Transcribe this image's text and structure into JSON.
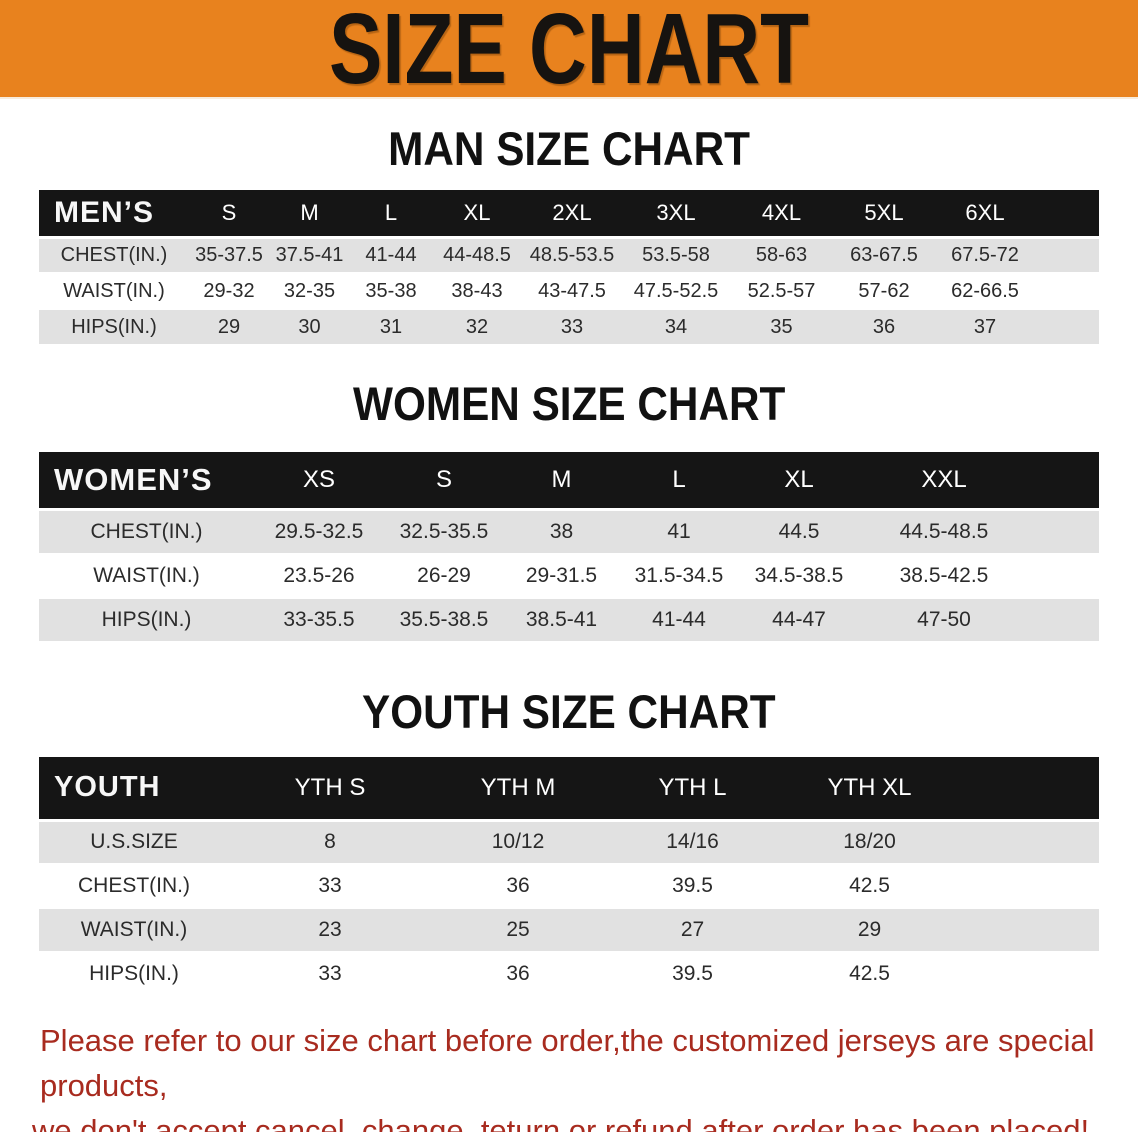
{
  "banner": {
    "title": "SIZE CHART"
  },
  "sections": {
    "men": {
      "title": "MAN SIZE CHART",
      "table": {
        "group_label": "MEN’S",
        "sizes": [
          "S",
          "M",
          "L",
          "XL",
          "2XL",
          "3XL",
          "4XL",
          "5XL",
          "6XL"
        ],
        "rows": [
          {
            "label": "CHEST(IN.)",
            "values": [
              "35-37.5",
              "37.5-41",
              "41-44",
              "44-48.5",
              "48.5-53.5",
              "53.5-58",
              "58-63",
              "63-67.5",
              "67.5-72"
            ]
          },
          {
            "label": "WAIST(IN.)",
            "values": [
              "29-32",
              "32-35",
              "35-38",
              "38-43",
              "43-47.5",
              "47.5-52.5",
              "52.5-57",
              "57-62",
              "62-66.5"
            ]
          },
          {
            "label": "HIPS(IN.)",
            "values": [
              "29",
              "30",
              "31",
              "32",
              "33",
              "34",
              "35",
              "36",
              "37"
            ]
          }
        ]
      }
    },
    "women": {
      "title": "WOMEN SIZE CHART",
      "table": {
        "group_label": "WOMEN’S",
        "sizes": [
          "XS",
          "S",
          "M",
          "L",
          "XL",
          "XXL"
        ],
        "rows": [
          {
            "label": "CHEST(IN.)",
            "values": [
              "29.5-32.5",
              "32.5-35.5",
              "38",
              "41",
              "44.5",
              "44.5-48.5"
            ]
          },
          {
            "label": "WAIST(IN.)",
            "values": [
              "23.5-26",
              "26-29",
              "29-31.5",
              "31.5-34.5",
              "34.5-38.5",
              "38.5-42.5"
            ]
          },
          {
            "label": "HIPS(IN.)",
            "values": [
              "33-35.5",
              "35.5-38.5",
              "38.5-41",
              "41-44",
              "44-47",
              "47-50"
            ]
          }
        ]
      }
    },
    "youth": {
      "title": "YOUTH SIZE CHART",
      "table": {
        "group_label": "YOUTH",
        "sizes": [
          "YTH S",
          "YTH M",
          "YTH L",
          "YTH XL"
        ],
        "rows": [
          {
            "label": "U.S.SIZE",
            "values": [
              "8",
              "10/12",
              "14/16",
              "18/20"
            ]
          },
          {
            "label": "CHEST(IN.)",
            "values": [
              "33",
              "36",
              "39.5",
              "42.5"
            ]
          },
          {
            "label": "WAIST(IN.)",
            "values": [
              "23",
              "25",
              "27",
              "29"
            ]
          },
          {
            "label": "HIPS(IN.)",
            "values": [
              "33",
              "36",
              "39.5",
              "42.5"
            ]
          }
        ]
      }
    }
  },
  "note": {
    "line1": "Please refer to our size chart before order,the customized jerseys are special products,",
    "line2": "we don't accept cancel, change, teturn or refund after order has been placed!"
  },
  "colors": {
    "banner_bg": "#E8821E",
    "header_bar": "#151515",
    "stripe_gray": "#e1e1e1",
    "note_red": "#a82b1f"
  }
}
